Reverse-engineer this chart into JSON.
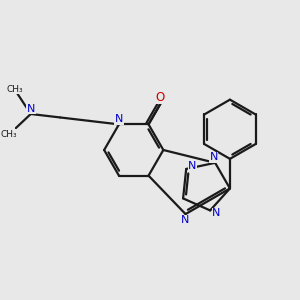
{
  "bg_color": "#e8e8e8",
  "bond_color": "#1a1a1a",
  "nitrogen_color": "#0000cc",
  "oxygen_color": "#cc0000",
  "lw": 1.6,
  "fig_size": [
    3.0,
    3.0
  ],
  "dpi": 100,
  "xlim": [
    0,
    10
  ],
  "ylim": [
    0,
    10
  ]
}
